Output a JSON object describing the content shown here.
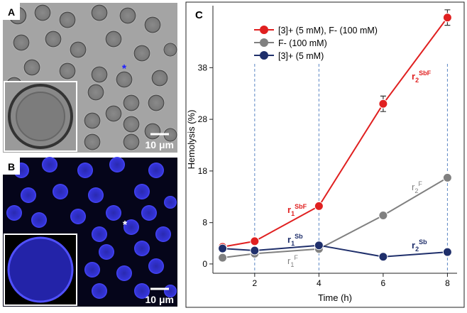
{
  "panels": [
    {
      "label": "A",
      "scale_bar": "10 μm",
      "marker": "*"
    },
    {
      "label": "B",
      "scale_bar": "10 μm",
      "marker": "*"
    }
  ],
  "chart_data": {
    "type": "line",
    "panel_label": "C",
    "x_label": "Time (h)",
    "y_label": "Hemolysis (%)",
    "x": [
      1,
      2,
      4,
      6,
      8
    ],
    "series": [
      {
        "name": "[3]+ (5 mM), F- (100 mM)",
        "color": "#e02020",
        "values": [
          3.3,
          4.4,
          11.2,
          31,
          47.7
        ],
        "errors": [
          null,
          null,
          null,
          1.5,
          1.5
        ]
      },
      {
        "name": "F- (100 mM)",
        "color": "#808080",
        "values": [
          1.2,
          2.0,
          2.9,
          9.4,
          16.7
        ]
      },
      {
        "name": "[3]+ (5 mM)",
        "color": "#1f2f6b",
        "values": [
          3.0,
          2.6,
          3.6,
          1.4,
          2.3
        ]
      }
    ],
    "xlim": [
      0.7,
      8.3
    ],
    "ylim": [
      -1.8,
      50
    ],
    "xticks": [
      2,
      4,
      6,
      8
    ],
    "yticks": [
      0,
      8,
      18,
      28,
      38
    ],
    "reference_lines_x": [
      2,
      4,
      8
    ],
    "annotations": [
      {
        "base": "r",
        "sub": "1",
        "sup": "SbF",
        "color": "#e02020"
      },
      {
        "base": "r",
        "sub": "2",
        "sup": "SbF",
        "color": "#e02020"
      },
      {
        "base": "r",
        "sub": "1",
        "sup": "F",
        "color": "#808080"
      },
      {
        "base": "r",
        "sub": "2",
        "sup": "F",
        "color": "#808080"
      },
      {
        "base": "r",
        "sub": "1",
        "sup": "Sb",
        "color": "#1f2f6b"
      },
      {
        "base": "r",
        "sub": "2",
        "sup": "Sb",
        "color": "#1f2f6b"
      }
    ]
  }
}
